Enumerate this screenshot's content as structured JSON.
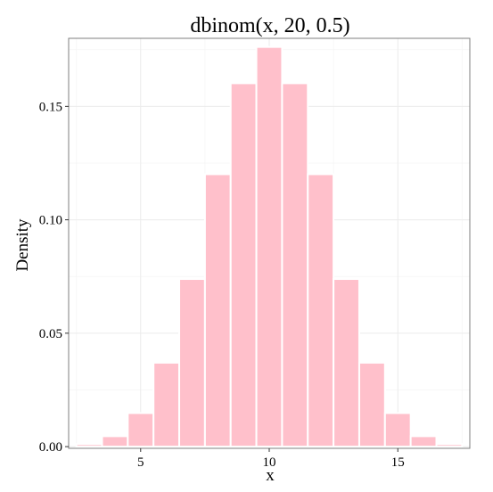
{
  "chart_data": {
    "type": "bar",
    "title": "dbinom(x, 20, 0.5)",
    "xlabel": "x",
    "ylabel": "Density",
    "x": [
      3,
      4,
      5,
      6,
      7,
      8,
      9,
      10,
      11,
      12,
      13,
      14,
      15,
      16,
      17
    ],
    "values": [
      0.0011,
      0.0046,
      0.0148,
      0.037,
      0.0739,
      0.1201,
      0.1602,
      0.1762,
      0.1602,
      0.1201,
      0.0739,
      0.037,
      0.0148,
      0.0046,
      0.0011
    ],
    "xlim": [
      2.2,
      17.8
    ],
    "ylim": [
      -0.00075,
      0.18
    ],
    "x_ticks": [
      5,
      10,
      15
    ],
    "x_tick_labels": [
      "5",
      "10",
      "15"
    ],
    "y_ticks": [
      0,
      0.05,
      0.1,
      0.15
    ],
    "y_tick_labels": [
      "0.00",
      "0.05",
      "0.10",
      "0.15"
    ],
    "grid": true,
    "legend": "none",
    "colors": {
      "bar_fill": "#FFC0CB",
      "bar_outline": "#FFFFFF",
      "panel_border": "#7F7F7F",
      "grid_major": "#EBEBEB",
      "grid_minor": "#F5F5F5"
    }
  }
}
